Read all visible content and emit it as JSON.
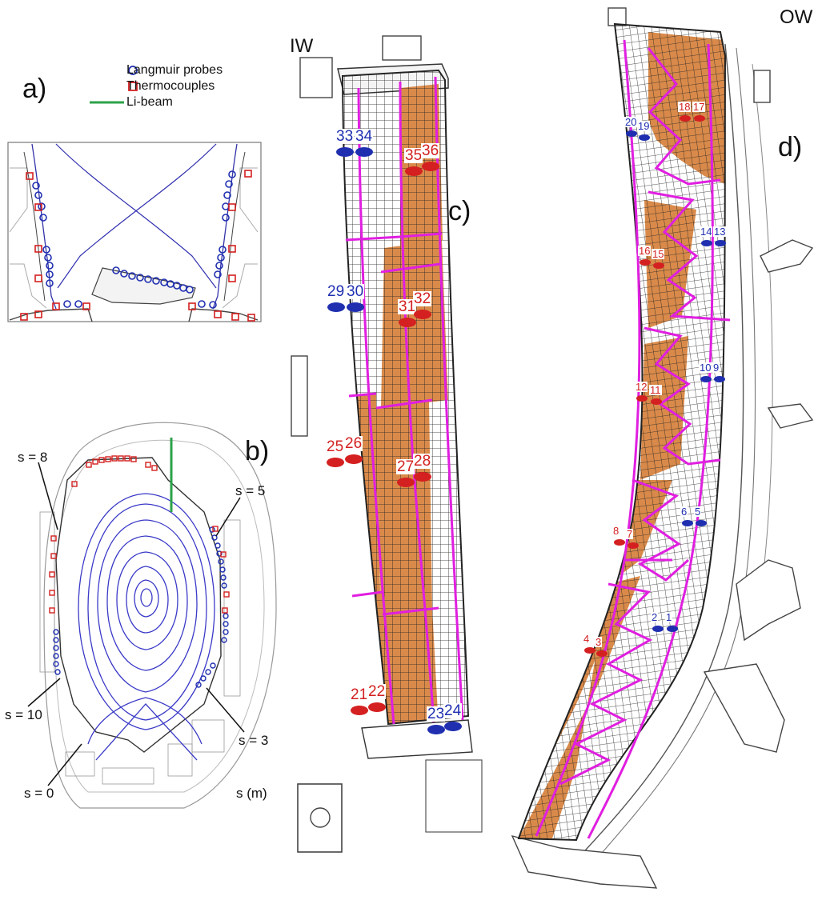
{
  "panels": {
    "a": "a)",
    "b": "b)",
    "c": "c)",
    "d": "d)"
  },
  "headers": {
    "inner_wall": "IW",
    "outer_wall": "OW"
  },
  "legend": {
    "langmuir": "Langmuir probes",
    "thermocouples": "Thermocouples",
    "libeam": "Li-beam"
  },
  "s_labels": {
    "s8": "s = 8",
    "s5": "s = 5",
    "s10": "s = 10",
    "s3": "s = 3",
    "s0": "s = 0",
    "s_m": "s (m)"
  },
  "colors": {
    "langmuir": "#1f2fb0",
    "thermocouple": "#d42020",
    "libeam": "#2ca24a",
    "boundary": "#e01fe0",
    "tile": "#d98a4a",
    "flux": "#3a3ac8"
  },
  "iw_probes": [
    {
      "label": "33",
      "kind": "langmuir"
    },
    {
      "label": "34",
      "kind": "langmuir"
    },
    {
      "label": "35",
      "kind": "thermocouple"
    },
    {
      "label": "36",
      "kind": "thermocouple"
    },
    {
      "label": "29",
      "kind": "langmuir"
    },
    {
      "label": "30",
      "kind": "langmuir"
    },
    {
      "label": "31",
      "kind": "thermocouple"
    },
    {
      "label": "32",
      "kind": "thermocouple"
    },
    {
      "label": "25",
      "kind": "thermocouple"
    },
    {
      "label": "26",
      "kind": "thermocouple"
    },
    {
      "label": "27",
      "kind": "thermocouple"
    },
    {
      "label": "28",
      "kind": "thermocouple"
    },
    {
      "label": "21",
      "kind": "thermocouple"
    },
    {
      "label": "22",
      "kind": "thermocouple"
    },
    {
      "label": "23",
      "kind": "langmuir"
    },
    {
      "label": "24",
      "kind": "langmuir"
    }
  ],
  "ow_probes": [
    {
      "label": "18",
      "kind": "thermocouple"
    },
    {
      "label": "17",
      "kind": "thermocouple"
    },
    {
      "label": "20",
      "kind": "langmuir"
    },
    {
      "label": "19",
      "kind": "langmuir"
    },
    {
      "label": "14",
      "kind": "langmuir"
    },
    {
      "label": "13",
      "kind": "langmuir"
    },
    {
      "label": "16",
      "kind": "thermocouple"
    },
    {
      "label": "15",
      "kind": "thermocouple"
    },
    {
      "label": "10",
      "kind": "langmuir"
    },
    {
      "label": "9",
      "kind": "langmuir"
    },
    {
      "label": "12",
      "kind": "thermocouple"
    },
    {
      "label": "11",
      "kind": "thermocouple"
    },
    {
      "label": "6",
      "kind": "langmuir"
    },
    {
      "label": "5",
      "kind": "langmuir"
    },
    {
      "label": "8",
      "kind": "thermocouple"
    },
    {
      "label": "7",
      "kind": "thermocouple"
    },
    {
      "label": "2",
      "kind": "langmuir"
    },
    {
      "label": "1",
      "kind": "langmuir"
    },
    {
      "label": "4",
      "kind": "thermocouple"
    },
    {
      "label": "3",
      "kind": "thermocouple"
    }
  ]
}
